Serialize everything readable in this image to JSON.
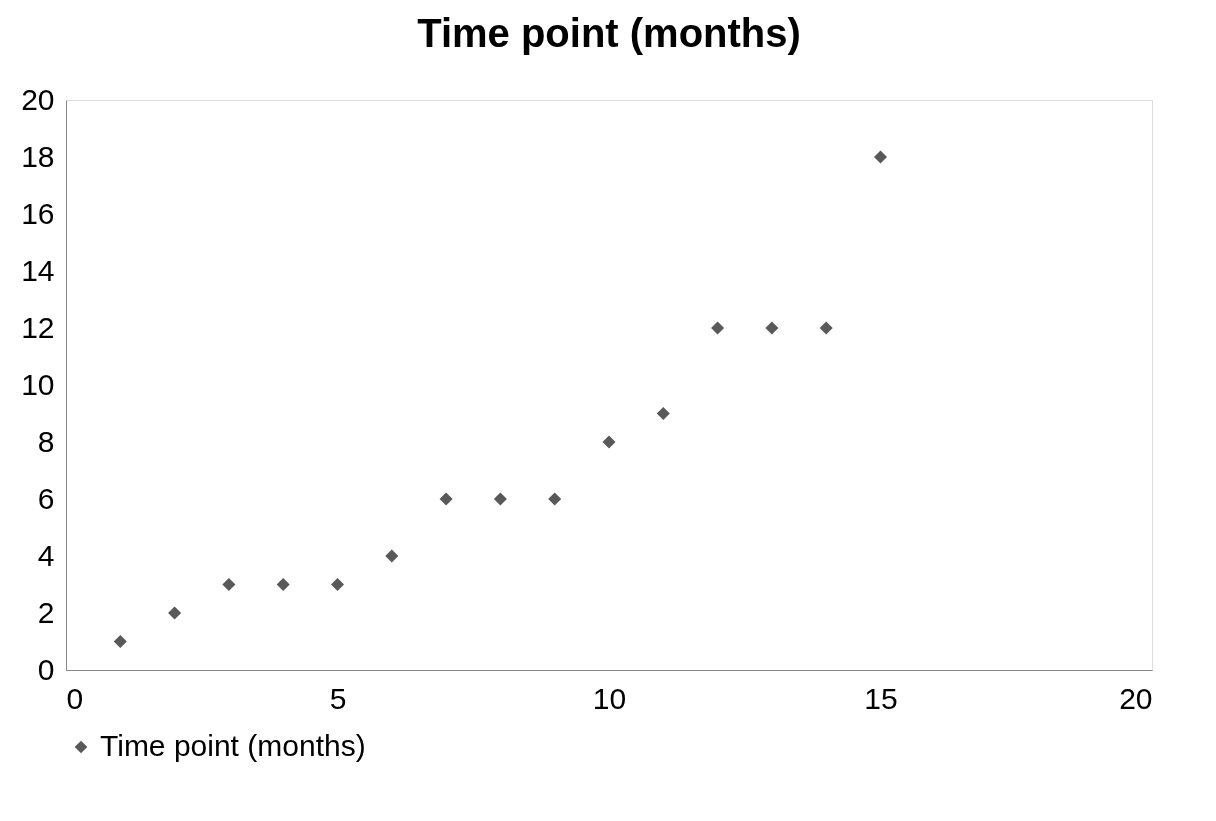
{
  "chart_data": {
    "type": "scatter",
    "title": "Time point (months)",
    "x": [
      1,
      2,
      3,
      4,
      5,
      6,
      7,
      8,
      9,
      10,
      11,
      12,
      13,
      14,
      15
    ],
    "series": [
      {
        "name": "Time point (months)",
        "color": "#595959",
        "values": [
          1,
          2,
          3,
          3,
          3,
          4,
          6,
          6,
          6,
          8,
          9,
          12,
          12,
          12,
          18
        ]
      }
    ],
    "xlim": [
      0,
      20
    ],
    "xticks": [
      0,
      5,
      10,
      15,
      20
    ],
    "ylim": [
      0,
      20
    ],
    "yticks": [
      0,
      2,
      4,
      6,
      8,
      10,
      12,
      14,
      16,
      18,
      20
    ],
    "grid": false,
    "legend": "bottom",
    "marker": "diamond"
  }
}
